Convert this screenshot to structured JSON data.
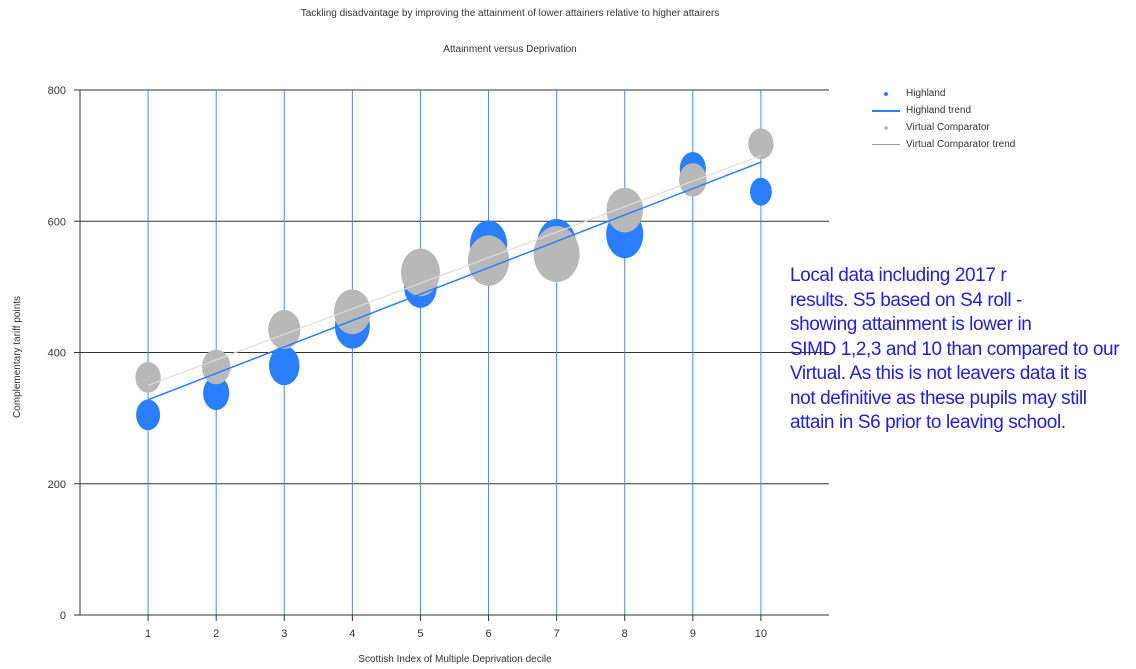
{
  "chart_data": {
    "type": "scatter",
    "title": "Tackling disadvantage by improving the attainment of lower attainers relative to higher attairers",
    "subtitle": "Attainment versus Deprivation",
    "xlabel": "Scottish Index of Multiple Deprivation decile",
    "ylabel": "Complementary tariff points",
    "xlim": [
      0,
      11
    ],
    "ylim": [
      0,
      800
    ],
    "x_ticks": [
      1,
      2,
      3,
      4,
      5,
      6,
      7,
      8,
      9,
      10
    ],
    "y_ticks": [
      0,
      200,
      400,
      600,
      800
    ],
    "grid": true,
    "legend_placement": "top-right",
    "series": [
      {
        "name": "Highland",
        "color": "#2a7fff",
        "x": [
          1,
          2,
          3,
          4,
          5,
          6,
          7,
          8,
          9,
          10
        ],
        "y": [
          305,
          338,
          380,
          440,
          500,
          565,
          565,
          580,
          680,
          645
        ],
        "relative_size": [
          0.55,
          0.6,
          0.7,
          0.8,
          0.75,
          0.85,
          0.9,
          0.85,
          0.6,
          0.5
        ]
      },
      {
        "name": "Highland trend",
        "color": "#2a7fff",
        "x": [
          1,
          10
        ],
        "y": [
          328,
          690
        ]
      },
      {
        "name": "Virtual Comparator",
        "color": "#b8b8b8",
        "x": [
          1,
          2,
          3,
          4,
          5,
          6,
          7,
          8,
          9,
          10
        ],
        "y": [
          362,
          378,
          435,
          462,
          522,
          540,
          550,
          617,
          663,
          718
        ],
        "relative_size": [
          0.55,
          0.62,
          0.7,
          0.8,
          0.85,
          0.9,
          1.0,
          0.8,
          0.6,
          0.55
        ]
      },
      {
        "name": "Virtual Comparator trend",
        "color": "#b0b0b0",
        "x": [
          1,
          10
        ],
        "y": [
          350,
          700
        ]
      }
    ]
  },
  "annotation": {
    "lines": [
      "Local data including 2017  r",
      "results. S5 based on S4 roll -",
      "showing attainment is lower in",
      "SIMD 1,2,3 and 10 than compared to our",
      "Virtual. As this is not leavers data it is",
      "not definitive as these pupils may still",
      "attain in S6 prior to leaving school."
    ]
  },
  "legend": {
    "items": [
      {
        "label": "Highland",
        "kind": "dot",
        "color": "#2a7fff"
      },
      {
        "label": "Highland trend",
        "kind": "line",
        "color": "#2a7fff"
      },
      {
        "label": "Virtual Comparator",
        "kind": "dot",
        "color": "#c0c0c0"
      },
      {
        "label": "Virtual Comparator trend",
        "kind": "line-thin",
        "color": "#999999"
      }
    ]
  }
}
